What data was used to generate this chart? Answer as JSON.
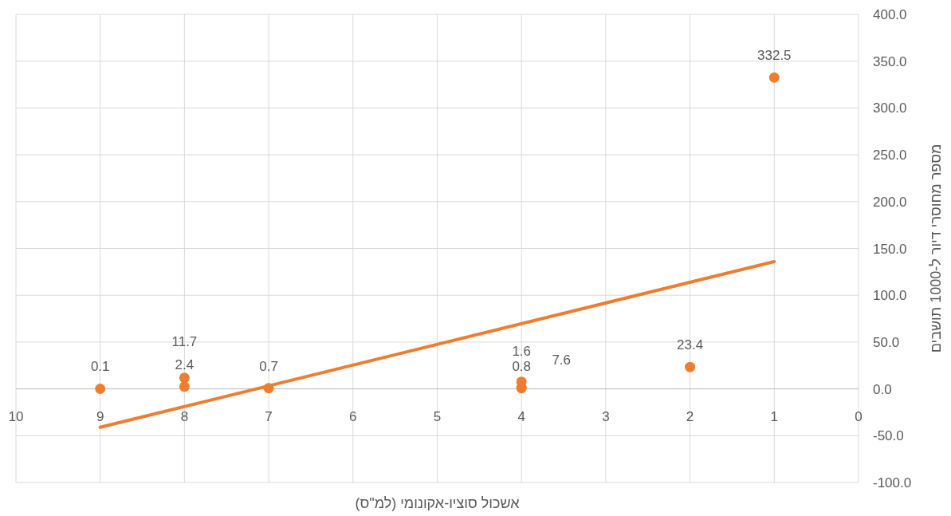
{
  "chart_data": {
    "type": "scatter",
    "xlabel": "אשכול סוציו-אקונומי (למ\"ס)",
    "ylabel": "מספר מחוסרי דיור ל-1000 תושבים",
    "series": [
      {
        "color": "#ed7d31",
        "marker": "circle",
        "x": [
          9,
          8,
          8,
          7,
          4,
          4,
          4,
          2,
          1
        ],
        "values": [
          0.1,
          2.4,
          11.7,
          0.7,
          0.8,
          1.6,
          7.6,
          23.4,
          332.5
        ],
        "value_labels": [
          "0.1",
          "2.4",
          "11.7",
          "0.7",
          "0.8",
          "1.6",
          "7.6",
          "23.4",
          "332.5"
        ]
      },
      {
        "type": "line",
        "color": "#ed7d31",
        "marker": "none",
        "x": [
          9,
          1
        ],
        "values": [
          -41,
          136
        ]
      }
    ],
    "grid": true,
    "xlim": [
      10,
      0
    ],
    "xticks": [
      0,
      1,
      2,
      3,
      4,
      5,
      6,
      7,
      8,
      9,
      10
    ],
    "ylim": [
      -100,
      400
    ],
    "yticks": [
      {
        "value": -100,
        "label": "-100.0"
      },
      {
        "value": -50,
        "label": "-50.0"
      },
      {
        "value": 0,
        "label": "0.0"
      },
      {
        "value": 50,
        "label": "50.0"
      },
      {
        "value": 100,
        "label": "100.0"
      },
      {
        "value": 150,
        "label": "150.0"
      },
      {
        "value": 200,
        "label": "200.0"
      },
      {
        "value": 250,
        "label": "250.0"
      },
      {
        "value": 300,
        "label": "300.0"
      },
      {
        "value": 350,
        "label": "350.0"
      },
      {
        "value": 400,
        "label": "400.0"
      }
    ]
  }
}
